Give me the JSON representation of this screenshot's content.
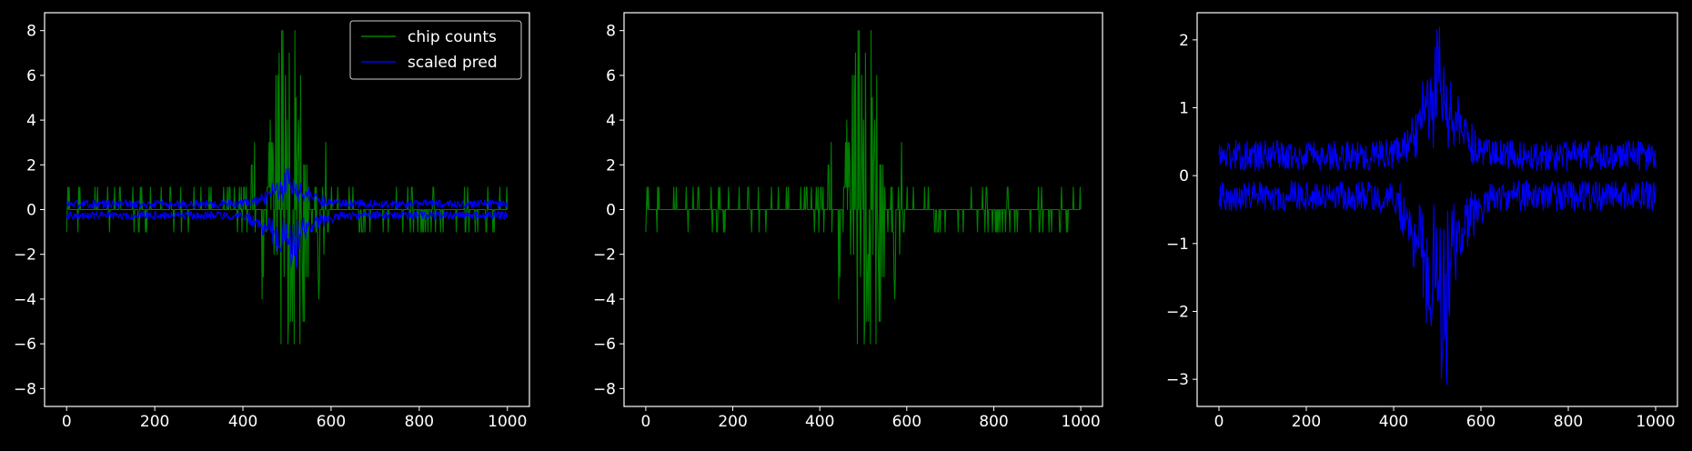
{
  "figure": {
    "background": "#000000",
    "axis_color": "#ffffff",
    "text_color": "#ffffff"
  },
  "legend": {
    "placement": "top-right",
    "entries": [
      {
        "label": "chip counts",
        "color": "#008000"
      },
      {
        "label": "scaled pred",
        "color": "#0000ff"
      }
    ]
  },
  "chart_data": [
    {
      "type": "line",
      "title": "",
      "xlabel": "",
      "ylabel": "",
      "xlim": [
        -50,
        1050
      ],
      "ylim": [
        -8.8,
        8.8
      ],
      "xticks": [
        0,
        200,
        400,
        600,
        800,
        1000
      ],
      "xtick_labels": [
        "0",
        "200",
        "400",
        "600",
        "800",
        "1000"
      ],
      "yticks": [
        -8,
        -6,
        -4,
        -2,
        0,
        2,
        4,
        6,
        8
      ],
      "ytick_labels": [
        "−8",
        "−6",
        "−4",
        "−2",
        "0",
        "2",
        "4",
        "6",
        "8"
      ],
      "grid": false,
      "series": [
        {
          "name": "chip counts",
          "color": "#008000",
          "kind": "counts",
          "x_range": [
            0,
            1000
          ]
        },
        {
          "name": "scaled pred",
          "color": "#0000ff",
          "kind": "pred_scaled",
          "x_range": [
            0,
            1000
          ]
        }
      ]
    },
    {
      "type": "line",
      "title": "",
      "xlabel": "",
      "ylabel": "",
      "xlim": [
        -50,
        1050
      ],
      "ylim": [
        -8.8,
        8.8
      ],
      "xticks": [
        0,
        200,
        400,
        600,
        800,
        1000
      ],
      "xtick_labels": [
        "0",
        "200",
        "400",
        "600",
        "800",
        "1000"
      ],
      "yticks": [
        -8,
        -6,
        -4,
        -2,
        0,
        2,
        4,
        6,
        8
      ],
      "ytick_labels": [
        "−8",
        "−6",
        "−4",
        "−2",
        "0",
        "2",
        "4",
        "6",
        "8"
      ],
      "grid": false,
      "series": [
        {
          "color": "#008000",
          "kind": "counts",
          "x_range": [
            0,
            1000
          ]
        }
      ]
    },
    {
      "type": "line",
      "title": "",
      "xlabel": "",
      "ylabel": "",
      "xlim": [
        -50,
        1050
      ],
      "ylim": [
        -3.4,
        2.4
      ],
      "xticks": [
        0,
        200,
        400,
        600,
        800,
        1000
      ],
      "xtick_labels": [
        "0",
        "200",
        "400",
        "600",
        "800",
        "1000"
      ],
      "yticks": [
        -3,
        -2,
        -1,
        0,
        1,
        2
      ],
      "ytick_labels": [
        "−3",
        "−2",
        "−1",
        "0",
        "1",
        "2"
      ],
      "grid": false,
      "series": [
        {
          "color": "#0000ff",
          "kind": "pred",
          "x_range": [
            0,
            1000
          ]
        }
      ]
    }
  ]
}
